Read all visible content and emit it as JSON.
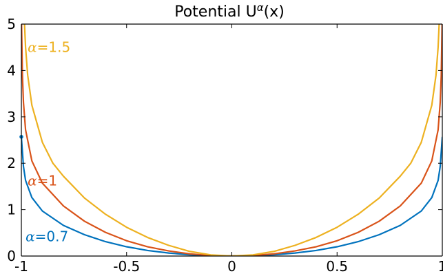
{
  "chart_data": {
    "type": "line",
    "title": {
      "main": "Potential  U",
      "superscript": "α",
      "suffix": "(x)"
    },
    "xlim": [
      -1,
      1
    ],
    "ylim": [
      0,
      5
    ],
    "grid": false,
    "xticks": [
      -1,
      -0.5,
      0,
      0.5,
      1
    ],
    "xtick_labels": [
      "-1",
      "-0.5",
      "0",
      "0.5",
      "1"
    ],
    "yticks": [
      0,
      1,
      2,
      3,
      4,
      5
    ],
    "ytick_labels": [
      "0",
      "1",
      "2",
      "3",
      "4",
      "5"
    ],
    "series": [
      {
        "name": "α=0.7",
        "alpha": 0.7,
        "color": "#0072BD",
        "x": [
          -1.0,
          -0.99,
          -0.98,
          -0.95,
          -0.9,
          -0.8,
          -0.7,
          -0.6,
          -0.5,
          -0.4,
          -0.3,
          -0.2,
          -0.1,
          0,
          0.1,
          0.2,
          0.3,
          0.4,
          0.5,
          0.6,
          0.7,
          0.8,
          0.9,
          0.95,
          0.98,
          0.99,
          1.0
        ],
        "values": [
          2.57,
          1.93,
          1.63,
          1.26,
          0.97,
          0.66,
          0.46,
          0.31,
          0.2,
          0.12,
          0.065,
          0.028,
          0.007,
          0,
          0.007,
          0.028,
          0.065,
          0.12,
          0.2,
          0.31,
          0.46,
          0.66,
          0.97,
          1.26,
          1.63,
          1.93,
          2.57
        ],
        "endpoint_marker": true
      },
      {
        "name": "α=1",
        "alpha": 1,
        "color": "#D95319",
        "x": [
          -0.999,
          -0.995,
          -0.99,
          -0.98,
          -0.95,
          -0.9,
          -0.8,
          -0.7,
          -0.6,
          -0.5,
          -0.4,
          -0.3,
          -0.2,
          -0.1,
          0,
          0.1,
          0.2,
          0.3,
          0.4,
          0.5,
          0.6,
          0.7,
          0.8,
          0.9,
          0.95,
          0.98,
          0.99,
          0.995,
          0.999
        ],
        "values": [
          5.0,
          3.9,
          3.31,
          2.72,
          2.05,
          1.57,
          1.08,
          0.75,
          0.51,
          0.33,
          0.2,
          0.11,
          0.047,
          0.012,
          0,
          0.012,
          0.047,
          0.11,
          0.2,
          0.33,
          0.51,
          0.75,
          1.08,
          1.57,
          2.05,
          2.72,
          3.31,
          3.9,
          5.0
        ]
      },
      {
        "name": "α=1.5",
        "alpha": 1.5,
        "color": "#EDB120",
        "x": [
          -0.985,
          -0.98,
          -0.97,
          -0.95,
          -0.9,
          -0.85,
          -0.8,
          -0.7,
          -0.6,
          -0.5,
          -0.4,
          -0.3,
          -0.2,
          -0.1,
          0,
          0.1,
          0.2,
          0.3,
          0.4,
          0.5,
          0.6,
          0.7,
          0.8,
          0.85,
          0.9,
          0.95,
          0.97,
          0.98,
          0.985
        ],
        "values": [
          5.0,
          4.5,
          3.9,
          3.25,
          2.45,
          2.0,
          1.72,
          1.25,
          0.9,
          0.62,
          0.4,
          0.23,
          0.1,
          0.025,
          0,
          0.025,
          0.1,
          0.23,
          0.4,
          0.62,
          0.9,
          1.25,
          1.72,
          2.0,
          2.45,
          3.25,
          3.9,
          4.5,
          5.0
        ]
      }
    ],
    "annotations": [
      {
        "prefix": "α",
        "text": "=1.5",
        "color": "#EDB120",
        "x": -0.97,
        "y": 4.4
      },
      {
        "prefix": "α",
        "text": "=1",
        "color": "#D95319",
        "x": -0.97,
        "y": 1.52
      },
      {
        "prefix": "α",
        "text": "=0.7",
        "color": "#0072BD",
        "x": -0.98,
        "y": 0.32
      }
    ]
  }
}
